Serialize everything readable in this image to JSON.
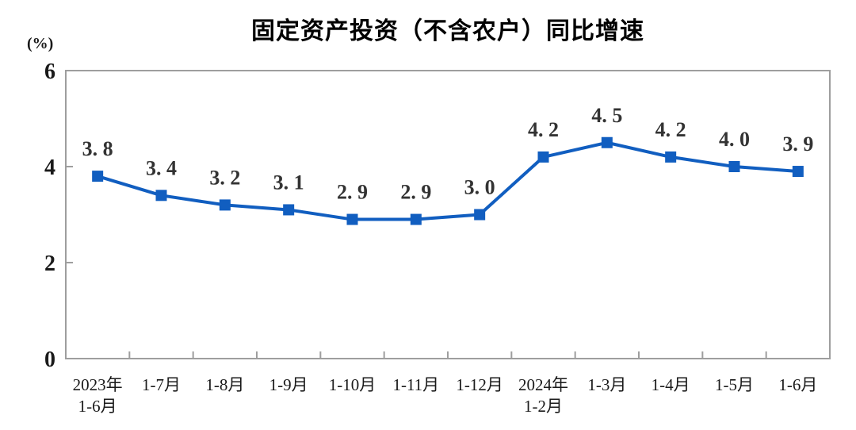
{
  "chart_data": {
    "type": "line",
    "title": "固定资产投资（不含农户）同比增速",
    "unit_label": "(%)",
    "categories": [
      "2023年\n1-6月",
      "1-7月",
      "1-8月",
      "1-9月",
      "1-10月",
      "1-11月",
      "1-12月",
      "2024年\n1-2月",
      "1-3月",
      "1-4月",
      "1-5月",
      "1-6月"
    ],
    "values": [
      3.8,
      3.4,
      3.2,
      3.1,
      2.9,
      2.9,
      3.0,
      4.2,
      4.5,
      4.2,
      4.0,
      3.9
    ],
    "point_labels": [
      "3. 8",
      "3. 4",
      "3. 2",
      "3. 1",
      "2. 9",
      "2. 9",
      "3. 0",
      "4. 2",
      "4. 5",
      "4. 2",
      "4. 0",
      "3. 9"
    ],
    "ylim": [
      0,
      6
    ],
    "yticks": [
      0,
      2,
      4,
      6
    ],
    "xlabel": "",
    "ylabel": "",
    "grid": false,
    "legend": "none",
    "marker": "square",
    "line_color": "#115EC0",
    "label_color": "#333333",
    "axis_color": "#9e9e9e",
    "tick_text_color": "#1a1a1a",
    "title_color": "#000000"
  }
}
